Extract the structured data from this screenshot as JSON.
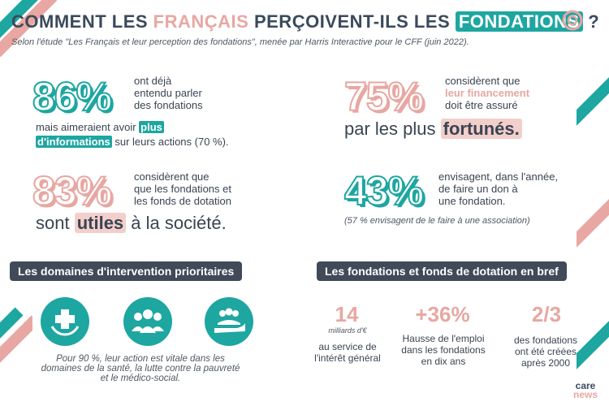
{
  "header": {
    "title_part1": "COMMENT LES ",
    "title_pink": "FRANÇAIS",
    "title_part2": " PERÇOIVENT-ILS LES ",
    "title_box": "FONDATIONS",
    "title_end": " ?",
    "subtitle": "Selon l'étude \"Les Français et leur perception des fondations\", menée par Harris Interactive pour le CFF (juin 2022)."
  },
  "stat86": {
    "value": "86%",
    "line1": "ont déjà",
    "line2": "entendu parler",
    "line3": "des fondations",
    "line4_a": "mais aimeraient avoir ",
    "line4_hl": "plus",
    "line5_hl": "d'informations",
    "line5_b": " sur leurs actions (70 %)."
  },
  "stat75": {
    "value": "75%",
    "line1": "considèrent que",
    "line2_pink": "leur financement",
    "line3": "doit être assuré",
    "large_a": "par les plus ",
    "large_hl": "fortunés."
  },
  "stat83": {
    "value": "83%",
    "line1": "considèrent que",
    "line2": "que les fondations et",
    "line3": "les fonds de dotation",
    "large_a": "sont ",
    "large_hl": "utiles",
    "large_b": " à la société."
  },
  "stat43": {
    "value": "43%",
    "line1": "envisagent, dans l'année,",
    "line2": "de faire un don à",
    "line3": "une fondation.",
    "note": "(57 % envisagent de le faire à une association)"
  },
  "domains": {
    "heading": "Les domaines d'intervention prioritaires",
    "icons": [
      "health-icon",
      "people-icon",
      "helping-hand-icon"
    ],
    "caption1": "Pour 90 %, leur action est vitale dans les",
    "caption2": "domaines de la santé, la lutte contre la pauvreté",
    "caption3": "et le médico-social."
  },
  "brief": {
    "heading": "Les fondations et fonds de dotation en bref",
    "stats": [
      {
        "value": "14",
        "sub": "milliards d'€",
        "desc1": "au service de",
        "desc2": "l'intérêt général",
        "desc3": ""
      },
      {
        "value": "+36%",
        "sub": "",
        "desc1": "Hausse de l'emploi",
        "desc2": "dans les fondations",
        "desc3": "en dix ans"
      },
      {
        "value": "2/3",
        "sub": "",
        "desc1": "des fondations",
        "desc2": "ont été créées",
        "desc3": "après 2000"
      }
    ]
  },
  "logo": {
    "line1": "care",
    "line2": "news"
  },
  "colors": {
    "teal": "#1ea6a1",
    "pink": "#e8a7a2",
    "dark": "#404a58"
  }
}
